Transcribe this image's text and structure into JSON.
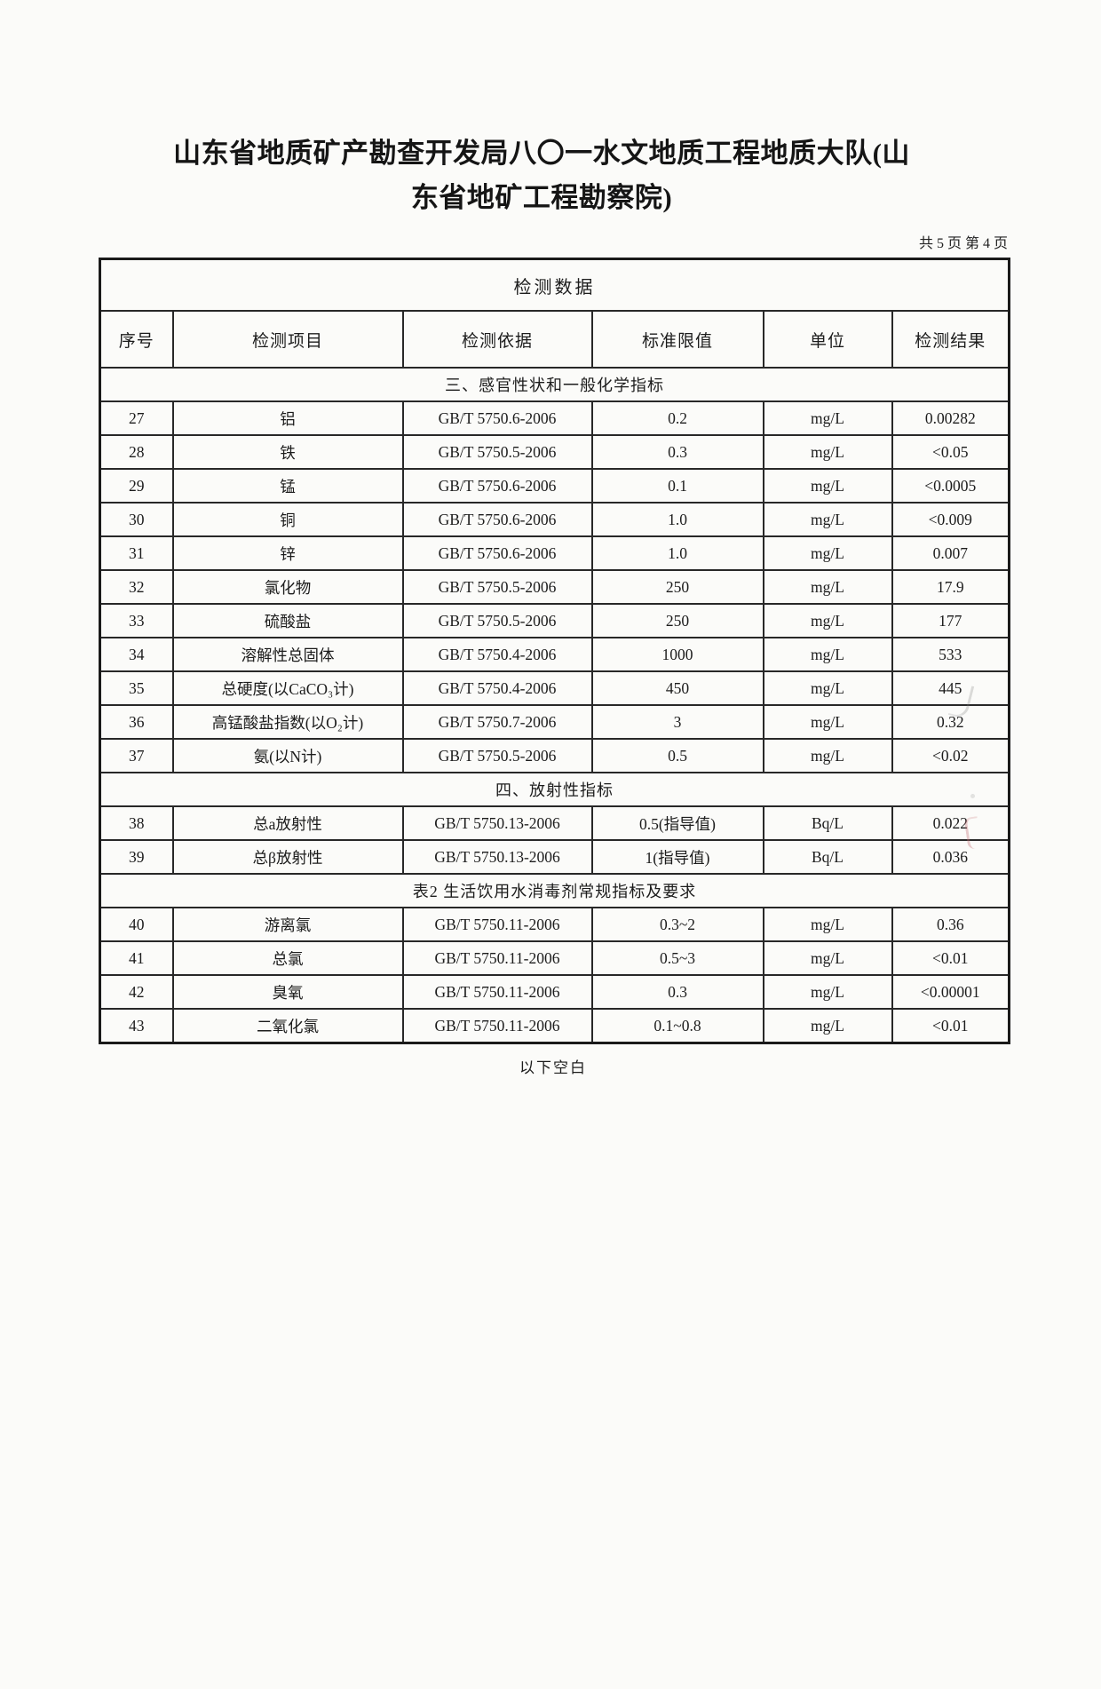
{
  "page": {
    "title_line1": "山东省地质矿产勘查开发局八〇一水文地质工程地质大队(山",
    "title_line2": "东省地矿工程勘察院)",
    "page_note": "共 5 页 第 4 页",
    "footer_note": "以下空白"
  },
  "table": {
    "title": "检测数据",
    "columns": [
      "序号",
      "检测项目",
      "检测依据",
      "标准限值",
      "单位",
      "检测结果"
    ],
    "rows": [
      {
        "type": "section",
        "label": "三、感官性状和一般化学指标"
      },
      {
        "type": "data",
        "no": "27",
        "item": "铝",
        "method": "GB/T 5750.6-2006",
        "limit": "0.2",
        "unit": "mg/L",
        "result": "0.00282"
      },
      {
        "type": "data",
        "no": "28",
        "item": "铁",
        "method": "GB/T 5750.5-2006",
        "limit": "0.3",
        "unit": "mg/L",
        "result": "<0.05"
      },
      {
        "type": "data",
        "no": "29",
        "item": "锰",
        "method": "GB/T 5750.6-2006",
        "limit": "0.1",
        "unit": "mg/L",
        "result": "<0.0005"
      },
      {
        "type": "data",
        "no": "30",
        "item": "铜",
        "method": "GB/T 5750.6-2006",
        "limit": "1.0",
        "unit": "mg/L",
        "result": "<0.009"
      },
      {
        "type": "data",
        "no": "31",
        "item": "锌",
        "method": "GB/T 5750.6-2006",
        "limit": "1.0",
        "unit": "mg/L",
        "result": "0.007"
      },
      {
        "type": "data",
        "no": "32",
        "item": "氯化物",
        "method": "GB/T 5750.5-2006",
        "limit": "250",
        "unit": "mg/L",
        "result": "17.9"
      },
      {
        "type": "data",
        "no": "33",
        "item": "硫酸盐",
        "method": "GB/T 5750.5-2006",
        "limit": "250",
        "unit": "mg/L",
        "result": "177"
      },
      {
        "type": "data",
        "no": "34",
        "item": "溶解性总固体",
        "method": "GB/T 5750.4-2006",
        "limit": "1000",
        "unit": "mg/L",
        "result": "533"
      },
      {
        "type": "data",
        "no": "35",
        "item": "总硬度(以CaCO₃计)",
        "method": "GB/T 5750.4-2006",
        "limit": "450",
        "unit": "mg/L",
        "result": "445"
      },
      {
        "type": "data",
        "no": "36",
        "item": "高锰酸盐指数(以O₂计)",
        "method": "GB/T 5750.7-2006",
        "limit": "3",
        "unit": "mg/L",
        "result": "0.32"
      },
      {
        "type": "data",
        "no": "37",
        "item": "氨(以N计)",
        "method": "GB/T 5750.5-2006",
        "limit": "0.5",
        "unit": "mg/L",
        "result": "<0.02"
      },
      {
        "type": "section",
        "label": "四、放射性指标"
      },
      {
        "type": "data",
        "no": "38",
        "item": "总a放射性",
        "method": "GB/T 5750.13-2006",
        "limit": "0.5(指导值)",
        "unit": "Bq/L",
        "result": "0.022"
      },
      {
        "type": "data",
        "no": "39",
        "item": "总β放射性",
        "method": "GB/T 5750.13-2006",
        "limit": "1(指导值)",
        "unit": "Bq/L",
        "result": "0.036"
      },
      {
        "type": "section",
        "label": "表2  生活饮用水消毒剂常规指标及要求"
      },
      {
        "type": "data",
        "no": "40",
        "item": "游离氯",
        "method": "GB/T 5750.11-2006",
        "limit": "0.3~2",
        "unit": "mg/L",
        "result": "0.36"
      },
      {
        "type": "data",
        "no": "41",
        "item": "总氯",
        "method": "GB/T 5750.11-2006",
        "limit": "0.5~3",
        "unit": "mg/L",
        "result": "<0.01"
      },
      {
        "type": "data",
        "no": "42",
        "item": "臭氧",
        "method": "GB/T 5750.11-2006",
        "limit": "0.3",
        "unit": "mg/L",
        "result": "<0.00001"
      },
      {
        "type": "data",
        "no": "43",
        "item": "二氧化氯",
        "method": "GB/T 5750.11-2006",
        "limit": "0.1~0.8",
        "unit": "mg/L",
        "result": "<0.01"
      }
    ]
  }
}
